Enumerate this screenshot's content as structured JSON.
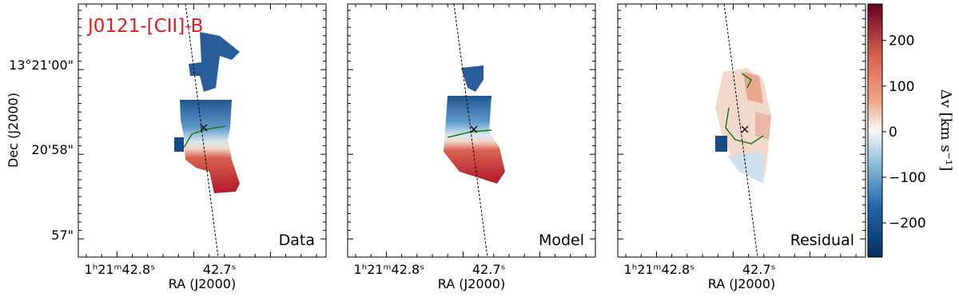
{
  "title": "J0121-[CII]-B",
  "panels": [
    {
      "label": "Data",
      "x_label": "RA (J2000)",
      "x_ticks": [
        "1ʰ21ᵐ42.8ˢ",
        "42.7ˢ"
      ]
    },
    {
      "label": "Model",
      "x_label": "RA (J2000)",
      "x_ticks": [
        "1ʰ21ᵐ42.8ˢ",
        "42.7ˢ"
      ]
    },
    {
      "label": "Residual",
      "x_label": "RA (J2000)",
      "x_ticks": [
        "1ʰ21ᵐ42.8ˢ",
        "42.7ˢ"
      ]
    }
  ],
  "y_label": "Dec (J2000)",
  "y_ticks": [
    "13°21'00\"",
    "20'58\"",
    "57\""
  ],
  "colorbar": {
    "label": "Δv [km s⁻¹]",
    "lim": [
      -275,
      280
    ],
    "ticks": [
      {
        "value": -200,
        "label": "−200"
      },
      {
        "value": -100,
        "label": "−100"
      },
      0,
      100,
      200
    ]
  }
}
